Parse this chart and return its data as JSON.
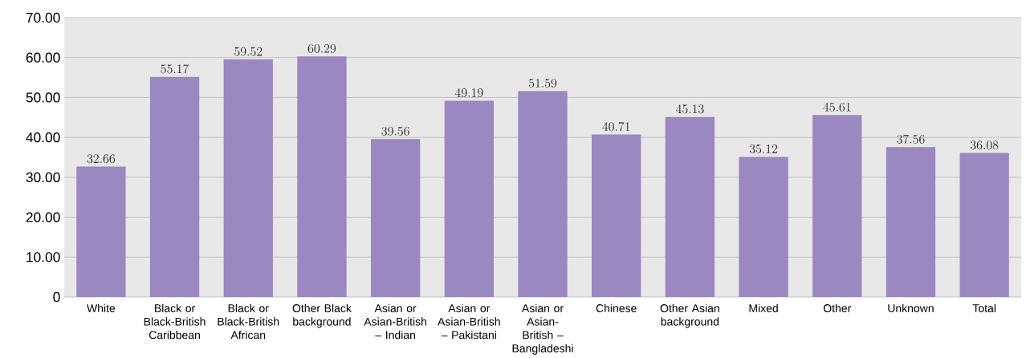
{
  "chart_data": {
    "type": "bar",
    "categories": [
      "White",
      "Black or Black-British Caribbean",
      "Black or Black-British African",
      "Other Black background",
      "Asian or Asian-British – Indian",
      "Asian or Asian-British – Pakistani",
      "Asian or Asian-British – Bangladeshi",
      "Chinese",
      "Other Asian background",
      "Mixed",
      "Other",
      "Unknown",
      "Total"
    ],
    "values": [
      32.66,
      55.17,
      59.52,
      60.29,
      39.56,
      49.19,
      51.59,
      40.71,
      45.13,
      35.12,
      45.61,
      37.56,
      36.08
    ],
    "color": "#9a88c0",
    "ylim": [
      0,
      70
    ],
    "yticks": [
      0,
      {
        "value": 10,
        "label": "10.00"
      },
      {
        "value": 20,
        "label": "20.00"
      },
      {
        "value": 30,
        "label": "30.00"
      },
      {
        "value": 40,
        "label": "40.00"
      },
      {
        "value": 50,
        "label": "50.00"
      },
      {
        "value": 60,
        "label": "60.00"
      },
      {
        "value": 70,
        "label": "70.00"
      }
    ],
    "grid": "y",
    "data_labels": true
  }
}
